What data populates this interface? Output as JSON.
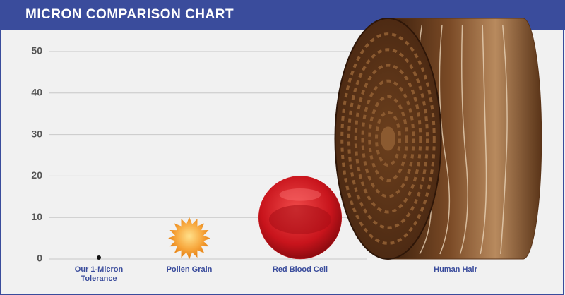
{
  "chart_data": {
    "type": "sizes",
    "title": "MICRON COMPARISON CHART",
    "categories": [
      "Our 1-Micron Tolerance",
      "Pollen Grain",
      "Red Blood Cell",
      "Human Hair"
    ],
    "values": [
      1,
      10,
      20,
      58
    ],
    "colors": [
      "#111111",
      "#f39a2a",
      "#d01f26",
      "#5a3418"
    ],
    "ylim": [
      0,
      50
    ],
    "yticks": [
      0,
      10,
      20,
      30,
      40,
      50
    ],
    "grid": true
  }
}
